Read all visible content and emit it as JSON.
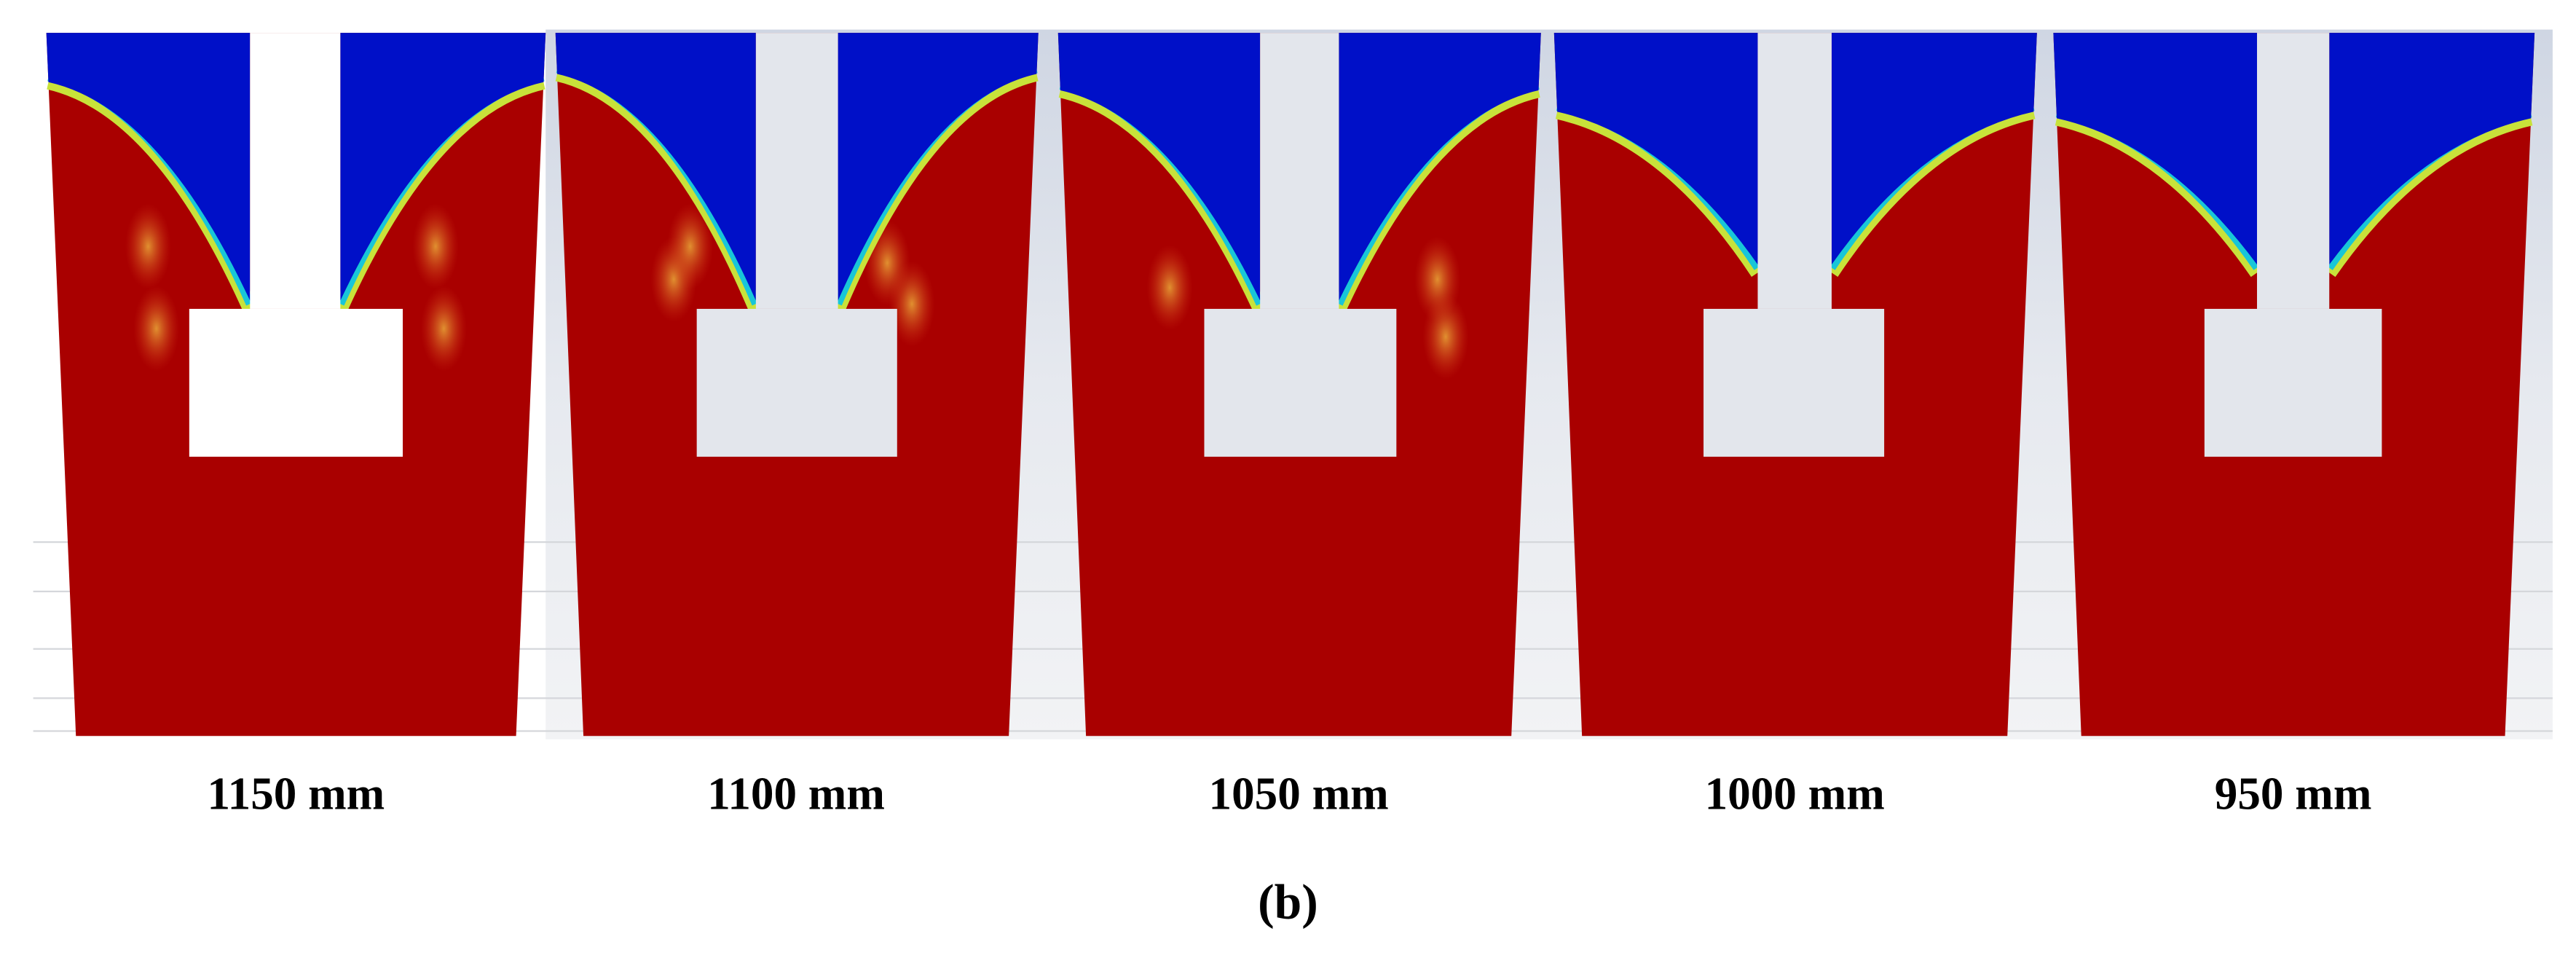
{
  "panels": [
    {
      "label": "1150 mm"
    },
    {
      "label": "1100 mm"
    },
    {
      "label": "1050 mm"
    },
    {
      "label": "1000 mm"
    },
    {
      "label": "950 mm"
    }
  ],
  "caption": "(b)"
}
